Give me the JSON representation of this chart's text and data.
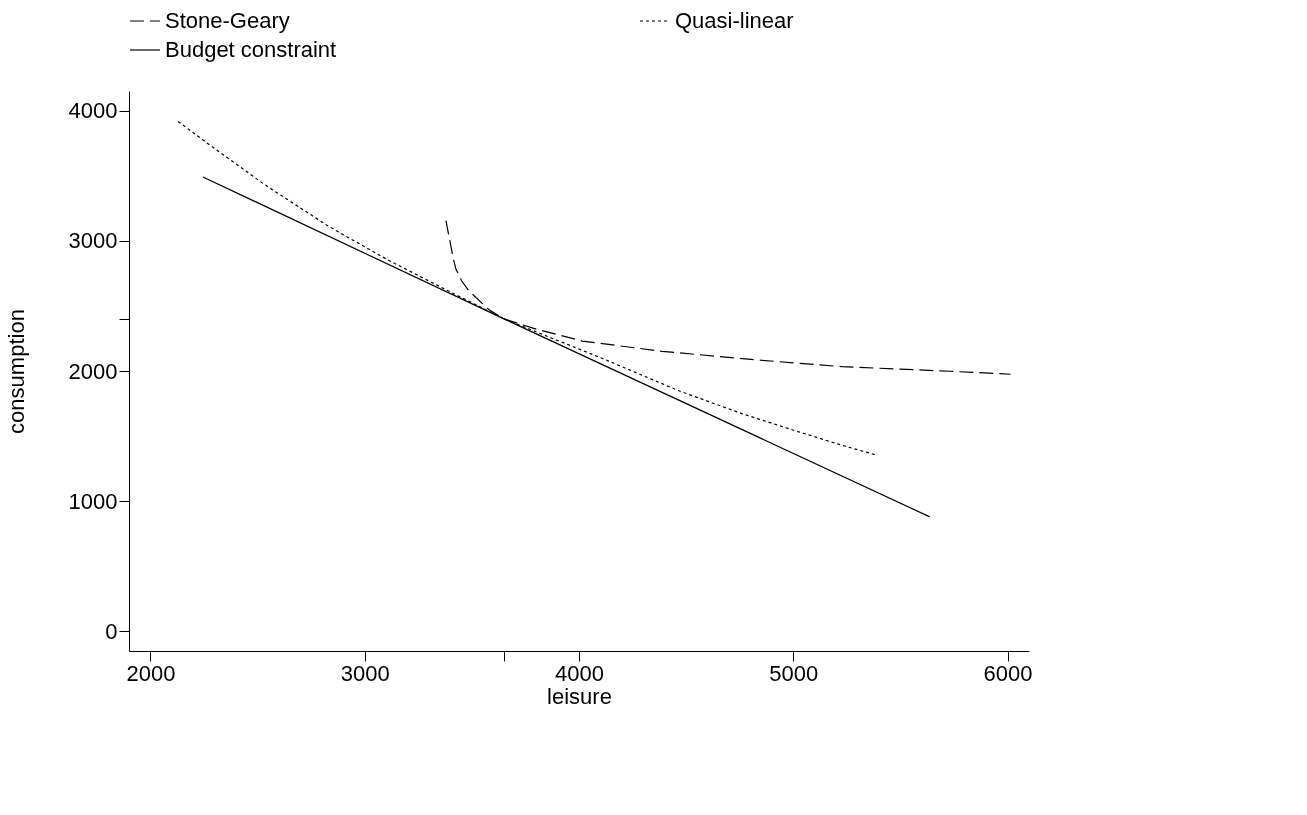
{
  "chart_data": {
    "type": "line",
    "xlabel": "leisure",
    "ylabel": "consumption",
    "xlim": [
      1900,
      6100
    ],
    "ylim": [
      -150,
      4150
    ],
    "xticks": [
      2000,
      3000,
      {
        "value": 3650,
        "label": null
      },
      4000,
      5000,
      6000
    ],
    "yticks": [
      0,
      1000,
      2000,
      {
        "value": 2400,
        "label": null
      },
      3000,
      4000
    ],
    "grid": false,
    "legend": "top",
    "marker": "none",
    "series": [
      {
        "name": "Stone-Geary",
        "color": "#000000",
        "line_style": "dashed",
        "x": [
          3379,
          3413,
          3425,
          3452,
          3487,
          3577,
          3650,
          3789,
          4015,
          4388,
          4823,
          5229,
          5731,
          6014
        ],
        "values": [
          3155,
          2866,
          2786,
          2693,
          2614,
          2475,
          2400,
          2327,
          2230,
          2151,
          2086,
          2033,
          1998,
          1975
        ]
      },
      {
        "name": "Quasi-linear",
        "color": "#000000",
        "line_style": "dotted",
        "x": [
          2129,
          2287,
          2532,
          2833,
          3106,
          3379,
          3650,
          4113,
          4469,
          4760,
          5002,
          5245,
          5383
        ],
        "values": [
          3916,
          3723,
          3432,
          3109,
          2855,
          2624,
          2400,
          2094,
          1846,
          1673,
          1545,
          1421,
          1357
        ]
      },
      {
        "name": "Budget constraint",
        "color": "#000000",
        "line_style": "solid",
        "x": [
          2245,
          3650,
          5637
        ],
        "values": [
          3490,
          2400,
          880
        ]
      }
    ]
  }
}
